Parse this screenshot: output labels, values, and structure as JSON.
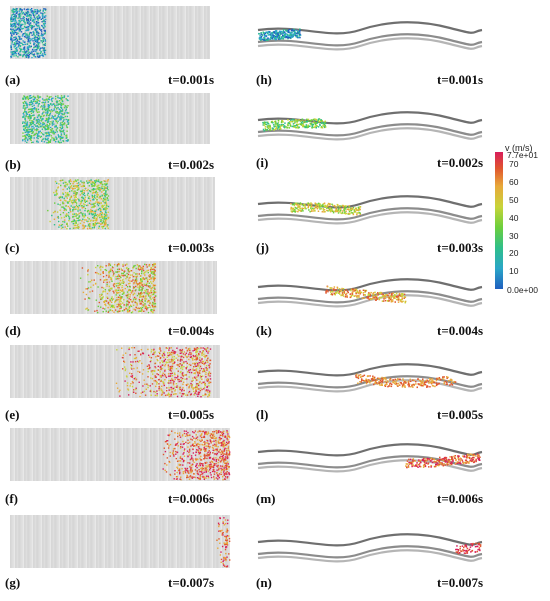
{
  "colorbar": {
    "title": "v (m/s)",
    "max_label": "7.7e+01",
    "min_label": "0.0e+00",
    "ticks": [
      "70",
      "60",
      "50",
      "40",
      "30",
      "20",
      "10"
    ],
    "tick_values": [
      70,
      60,
      50,
      40,
      30,
      20,
      10
    ],
    "min": 0,
    "max": 77,
    "colors": [
      "#1f5fbf",
      "#2aa6c8",
      "#2fbf8a",
      "#6ccf3c",
      "#c8d43a",
      "#e8a93a",
      "#e0562e",
      "#d81e5b"
    ]
  },
  "straight_channel": [
    {
      "label": "(a)",
      "time": "t=0.001s"
    },
    {
      "label": "(b)",
      "time": "t=0.002s"
    },
    {
      "label": "(c)",
      "time": "t=0.003s"
    },
    {
      "label": "(d)",
      "time": "t=0.004s"
    },
    {
      "label": "(e)",
      "time": "t=0.005s"
    },
    {
      "label": "(f)",
      "time": "t=0.006s"
    },
    {
      "label": "(g)",
      "time": "t=0.007s"
    }
  ],
  "curved_channel": [
    {
      "label": "(h)",
      "time": "t=0.001s"
    },
    {
      "label": "(i)",
      "time": "t=0.002s"
    },
    {
      "label": "(j)",
      "time": "t=0.003s"
    },
    {
      "label": "(k)",
      "time": "t=0.004s"
    },
    {
      "label": "(l)",
      "time": "t=0.005s"
    },
    {
      "label": "(m)",
      "time": "t=0.006s"
    },
    {
      "label": "(n)",
      "time": "t=0.007s"
    }
  ]
}
